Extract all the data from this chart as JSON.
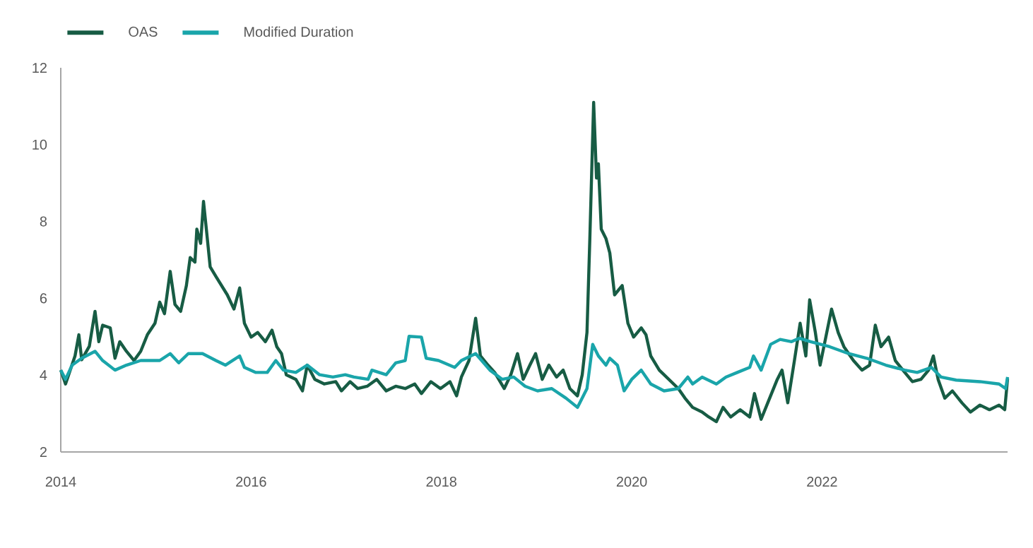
{
  "chart_data": {
    "type": "line",
    "legend": "top left",
    "marker": "none",
    "line_style": "solid",
    "xlim": [
      2014,
      2023.95
    ],
    "xticks": [
      2014,
      2016,
      2018,
      2020,
      2022
    ],
    "ylim": [
      2,
      12
    ],
    "yticks": [
      2,
      4,
      6,
      8,
      10,
      12
    ],
    "series": [
      {
        "name": "OAS",
        "color": "#175c44",
        "x": [
          2014.0,
          2014.05,
          2014.15,
          2014.19,
          2014.22,
          2014.3,
          2014.36,
          2014.4,
          2014.44,
          2014.52,
          2014.57,
          2014.62,
          2014.69,
          2014.77,
          2014.84,
          2014.91,
          2014.99,
          2015.04,
          2015.09,
          2015.15,
          2015.2,
          2015.26,
          2015.32,
          2015.36,
          2015.41,
          2015.43,
          2015.47,
          2015.5,
          2015.53,
          2015.57,
          2015.63,
          2015.69,
          2015.75,
          2015.82,
          2015.88,
          2015.93,
          2016.0,
          2016.07,
          2016.15,
          2016.22,
          2016.27,
          2016.32,
          2016.37,
          2016.47,
          2016.54,
          2016.59,
          2016.67,
          2016.77,
          2016.89,
          2016.95,
          2017.04,
          2017.12,
          2017.22,
          2017.32,
          2017.42,
          2017.52,
          2017.62,
          2017.72,
          2017.79,
          2017.89,
          2017.99,
          2018.09,
          2018.16,
          2018.21,
          2018.29,
          2018.36,
          2018.41,
          2018.49,
          2018.56,
          2018.66,
          2018.73,
          2018.8,
          2018.86,
          2018.93,
          2018.99,
          2019.06,
          2019.13,
          2019.21,
          2019.28,
          2019.35,
          2019.43,
          2019.48,
          2019.53,
          2019.56,
          2019.6,
          2019.63,
          2019.65,
          2019.68,
          2019.73,
          2019.77,
          2019.82,
          2019.9,
          2019.96,
          2020.02,
          2020.1,
          2020.15,
          2020.2,
          2020.29,
          2020.39,
          2020.49,
          2020.56,
          2020.64,
          2020.74,
          2020.81,
          2020.89,
          2020.96,
          2021.04,
          2021.14,
          2021.24,
          2021.29,
          2021.36,
          2021.43,
          2021.53,
          2021.58,
          2021.64,
          2021.71,
          2021.77,
          2021.83,
          2021.87,
          2021.93,
          2021.98,
          2022.04,
          2022.1,
          2022.17,
          2022.23,
          2022.33,
          2022.42,
          2022.5,
          2022.56,
          2022.62,
          2022.7,
          2022.77,
          2022.85,
          2022.95,
          2023.04,
          2023.12,
          2023.17,
          2023.22,
          2023.29,
          2023.37,
          2023.47,
          2023.56,
          2023.66,
          2023.76,
          2023.86,
          2023.92,
          2023.95
        ],
        "values": [
          4.13,
          3.77,
          4.5,
          5.05,
          4.4,
          4.75,
          5.66,
          4.87,
          5.3,
          5.23,
          4.44,
          4.87,
          4.62,
          4.38,
          4.62,
          5.05,
          5.35,
          5.9,
          5.6,
          6.7,
          5.84,
          5.66,
          6.33,
          7.06,
          6.94,
          7.8,
          7.43,
          8.52,
          7.8,
          6.82,
          6.57,
          6.33,
          6.09,
          5.72,
          6.27,
          5.35,
          4.99,
          5.11,
          4.87,
          5.17,
          4.74,
          4.56,
          4.01,
          3.89,
          3.59,
          4.26,
          3.89,
          3.77,
          3.83,
          3.59,
          3.83,
          3.65,
          3.71,
          3.89,
          3.59,
          3.71,
          3.65,
          3.77,
          3.52,
          3.83,
          3.65,
          3.83,
          3.46,
          3.95,
          4.38,
          5.48,
          4.5,
          4.26,
          4.07,
          3.65,
          4.01,
          4.56,
          3.89,
          4.26,
          4.56,
          3.89,
          4.26,
          3.95,
          4.13,
          3.65,
          3.46,
          4.01,
          5.11,
          7.55,
          11.1,
          9.13,
          9.5,
          7.8,
          7.55,
          7.18,
          6.09,
          6.33,
          5.35,
          4.99,
          5.23,
          5.05,
          4.5,
          4.13,
          3.89,
          3.65,
          3.4,
          3.16,
          3.04,
          2.91,
          2.79,
          3.16,
          2.91,
          3.1,
          2.91,
          3.52,
          2.85,
          3.28,
          3.89,
          4.13,
          3.28,
          4.38,
          5.35,
          4.5,
          5.96,
          5.11,
          4.26,
          4.99,
          5.72,
          5.11,
          4.74,
          4.38,
          4.13,
          4.26,
          5.3,
          4.74,
          4.99,
          4.38,
          4.13,
          3.83,
          3.89,
          4.13,
          4.5,
          3.89,
          3.4,
          3.59,
          3.28,
          3.04,
          3.22,
          3.1,
          3.22,
          3.1,
          3.91
        ]
      },
      {
        "name": "Modified Duration",
        "color": "#1aa5aa",
        "x": [
          2014.0,
          2014.05,
          2014.12,
          2014.22,
          2014.36,
          2014.44,
          2014.57,
          2014.69,
          2014.84,
          2015.04,
          2015.15,
          2015.24,
          2015.34,
          2015.49,
          2015.63,
          2015.73,
          2015.88,
          2015.93,
          2016.05,
          2016.17,
          2016.26,
          2016.34,
          2016.47,
          2016.59,
          2016.72,
          2016.86,
          2016.99,
          2017.08,
          2017.23,
          2017.27,
          2017.42,
          2017.52,
          2017.62,
          2017.66,
          2017.79,
          2017.84,
          2017.97,
          2018.14,
          2018.21,
          2018.36,
          2018.51,
          2018.64,
          2018.76,
          2018.88,
          2019.01,
          2019.16,
          2019.31,
          2019.43,
          2019.53,
          2019.59,
          2019.65,
          2019.73,
          2019.77,
          2019.85,
          2019.92,
          2020.0,
          2020.1,
          2020.2,
          2020.34,
          2020.49,
          2020.59,
          2020.64,
          2020.74,
          2020.89,
          2020.99,
          2021.11,
          2021.24,
          2021.28,
          2021.36,
          2021.46,
          2021.56,
          2021.68,
          2021.76,
          2021.88,
          2022.08,
          2022.28,
          2022.47,
          2022.67,
          2022.87,
          2023.0,
          2023.15,
          2023.25,
          2023.41,
          2023.66,
          2023.86,
          2023.93,
          2023.95
        ],
        "values": [
          4.13,
          3.89,
          4.26,
          4.44,
          4.62,
          4.38,
          4.13,
          4.26,
          4.38,
          4.38,
          4.56,
          4.32,
          4.56,
          4.56,
          4.38,
          4.26,
          4.5,
          4.2,
          4.07,
          4.07,
          4.38,
          4.13,
          4.07,
          4.26,
          4.01,
          3.95,
          4.01,
          3.95,
          3.89,
          4.13,
          4.01,
          4.32,
          4.38,
          5.01,
          4.99,
          4.44,
          4.38,
          4.2,
          4.38,
          4.56,
          4.13,
          3.89,
          3.95,
          3.71,
          3.59,
          3.65,
          3.4,
          3.16,
          3.65,
          4.8,
          4.5,
          4.26,
          4.44,
          4.26,
          3.59,
          3.89,
          4.13,
          3.77,
          3.59,
          3.65,
          3.95,
          3.77,
          3.95,
          3.77,
          3.95,
          4.07,
          4.2,
          4.5,
          4.13,
          4.8,
          4.93,
          4.87,
          4.96,
          4.87,
          4.74,
          4.56,
          4.44,
          4.26,
          4.13,
          4.07,
          4.2,
          3.95,
          3.87,
          3.83,
          3.77,
          3.65,
          3.95
        ]
      }
    ]
  }
}
